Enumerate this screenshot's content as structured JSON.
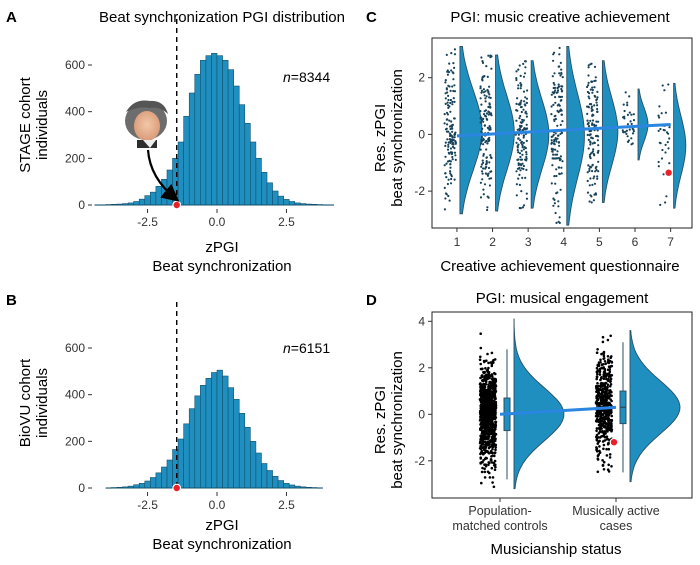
{
  "colors": {
    "bar_fill": "#1f8fc0",
    "bar_edge": "#13506e",
    "violin_fill": "#1f8fc0",
    "violin_edge": "#2c4f63",
    "points": "#17425a",
    "black_points": "#000000",
    "trend_line": "#2a86e0",
    "highlight": "#e8202a"
  },
  "labels": {
    "a_title": "Beat synchronization PGI distribution",
    "a_ylabel_1": "STAGE cohort",
    "a_ylabel_2": "individuals",
    "a_xlabel_1": "zPGI",
    "a_xlabel_2": "Beat synchronization",
    "a_n_italic": "n",
    "a_n_value": "=8344",
    "b_ylabel_1": "BioVU cohort",
    "b_ylabel_2": "individuals",
    "b_xlabel_1": "zPGI",
    "b_xlabel_2": "Beat synchronization",
    "b_n_italic": "n",
    "b_n_value": "=6151",
    "c_title": "PGI: music creative achievement",
    "c_ylabel_1": "Res. zPGI",
    "c_ylabel_2": "beat synchronization",
    "c_xlabel": "Creative achievement questionnaire",
    "d_title": "PGI: musical engagement",
    "d_ylabel_1": "Res. zPGI",
    "d_ylabel_2": "beat synchronization",
    "d_xlabel": "Musicianship status",
    "d_cat1_1": "Population-",
    "d_cat1_2": "matched controls",
    "d_cat2_1": "Musically active",
    "d_cat2_2": "cases"
  },
  "panels": [
    {
      "name": "panel-a",
      "letter": "A"
    },
    {
      "name": "panel-b",
      "letter": "B"
    },
    {
      "name": "panel-c",
      "letter": "C"
    },
    {
      "name": "panel-d",
      "letter": "D"
    }
  ],
  "chart_data": [
    {
      "type": "bar",
      "panel": "A",
      "title": "Beat synchronization PGI distribution",
      "xlabel": "zPGI Beat synchronization",
      "ylabel": "STAGE cohort individuals",
      "n": 8344,
      "xlim": [
        -4.5,
        4.5
      ],
      "ylim": [
        0,
        720
      ],
      "x_ticks": [
        -2.5,
        0.0,
        2.5
      ],
      "x_tick_labels": [
        "-2.5",
        "0.0",
        "2.5"
      ],
      "y_ticks": [
        0,
        200,
        400,
        600
      ],
      "y_tick_labels": [
        "0",
        "200",
        "400",
        "600"
      ],
      "bin_width": 0.2,
      "bin_starts": [
        -4.4,
        -4.2,
        -4.0,
        -3.8,
        -3.6,
        -3.4,
        -3.2,
        -3.0,
        -2.8,
        -2.6,
        -2.4,
        -2.2,
        -2.0,
        -1.8,
        -1.6,
        -1.4,
        -1.2,
        -1.0,
        -0.8,
        -0.6,
        -0.4,
        -0.2,
        0.0,
        0.2,
        0.4,
        0.6,
        0.8,
        1.0,
        1.2,
        1.4,
        1.6,
        1.8,
        2.0,
        2.2,
        2.4,
        2.6,
        2.8,
        3.0,
        3.2,
        3.4,
        3.6,
        3.8,
        4.0
      ],
      "counts": [
        1,
        1,
        2,
        3,
        4,
        6,
        9,
        15,
        25,
        40,
        55,
        80,
        110,
        150,
        200,
        270,
        380,
        480,
        560,
        620,
        640,
        650,
        640,
        620,
        580,
        510,
        430,
        350,
        270,
        200,
        140,
        95,
        60,
        38,
        24,
        15,
        9,
        6,
        4,
        3,
        2,
        1,
        1
      ],
      "cutoff_line_x": -1.45,
      "highlight_point": {
        "x": -1.45,
        "y": 0
      },
      "annotation": "portrait-with-arrow-to-highlighted-point"
    },
    {
      "type": "bar",
      "panel": "B",
      "xlabel": "zPGI Beat synchronization",
      "ylabel": "BioVU cohort individuals",
      "n": 6151,
      "xlim": [
        -4.5,
        4.5
      ],
      "ylim": [
        0,
        720
      ],
      "x_ticks": [
        -2.5,
        0.0,
        2.5
      ],
      "x_tick_labels": [
        "-2.5",
        "0.0",
        "2.5"
      ],
      "y_ticks": [
        0,
        200,
        400,
        600
      ],
      "y_tick_labels": [
        "0",
        "200",
        "400",
        "600"
      ],
      "bin_width": 0.2,
      "bin_starts": [
        -4.0,
        -3.8,
        -3.6,
        -3.4,
        -3.2,
        -3.0,
        -2.8,
        -2.6,
        -2.4,
        -2.2,
        -2.0,
        -1.8,
        -1.6,
        -1.4,
        -1.2,
        -1.0,
        -0.8,
        -0.6,
        -0.4,
        -0.2,
        0.0,
        0.2,
        0.4,
        0.6,
        0.8,
        1.0,
        1.2,
        1.4,
        1.6,
        1.8,
        2.0,
        2.2,
        2.4,
        2.6,
        2.8,
        3.0,
        3.2,
        3.4,
        3.6
      ],
      "counts": [
        1,
        2,
        3,
        5,
        8,
        14,
        20,
        30,
        45,
        65,
        90,
        120,
        165,
        210,
        275,
        340,
        395,
        440,
        470,
        495,
        505,
        480,
        430,
        380,
        320,
        260,
        200,
        150,
        105,
        75,
        50,
        32,
        20,
        13,
        8,
        5,
        3,
        2,
        1
      ],
      "cutoff_line_x": -1.45,
      "highlight_point": {
        "x": -1.45,
        "y": 0
      }
    },
    {
      "type": "scatter",
      "subtype": "raincloud",
      "panel": "C",
      "title": "PGI: music creative achievement",
      "xlabel": "Creative achievement questionnaire",
      "ylabel": "Res. zPGI beat synchronization",
      "categories": [
        "1",
        "2",
        "3",
        "4",
        "5",
        "6",
        "7"
      ],
      "ylim": [
        -3.3,
        3.4
      ],
      "y_ticks": [
        -2,
        0,
        2
      ],
      "y_tick_labels": [
        "-2",
        "0",
        "2"
      ],
      "groups": [
        {
          "category": "1",
          "min": -2.8,
          "max": 3.1,
          "density_width": 1.0
        },
        {
          "category": "2",
          "min": -2.7,
          "max": 2.8,
          "density_width": 0.85
        },
        {
          "category": "3",
          "min": -2.6,
          "max": 2.6,
          "density_width": 0.8
        },
        {
          "category": "4",
          "min": -3.2,
          "max": 3.1,
          "density_width": 0.8
        },
        {
          "category": "5",
          "min": -2.4,
          "max": 2.6,
          "density_width": 0.7
        },
        {
          "category": "6",
          "min": -0.9,
          "max": 1.6,
          "density_width": 0.45
        },
        {
          "category": "7",
          "min": -2.6,
          "max": 1.8,
          "density_width": 0.55
        }
      ],
      "trend_line": {
        "x": [
          1,
          7
        ],
        "y": [
          -0.05,
          0.35
        ]
      },
      "highlight_point": {
        "category": "7",
        "y": -1.35
      }
    },
    {
      "type": "scatter",
      "subtype": "raincloud",
      "panel": "D",
      "title": "PGI: musical engagement",
      "xlabel": "Musicianship status",
      "ylabel": "Res. zPGI beat synchronization",
      "categories": [
        "Population-matched controls",
        "Musically active cases"
      ],
      "ylim": [
        -3.6,
        4.4
      ],
      "y_ticks": [
        -2,
        0,
        2,
        4
      ],
      "y_tick_labels": [
        "-2",
        "0",
        "2",
        "4"
      ],
      "groups": [
        {
          "category": "Population-matched controls",
          "min": -3.2,
          "max": 4.1,
          "median": 0.0,
          "q1": -0.7,
          "q3": 0.7
        },
        {
          "category": "Musically active cases",
          "min": -2.9,
          "max": 3.6,
          "median": 0.3,
          "q1": -0.4,
          "q3": 1.0
        }
      ],
      "trend_line": {
        "x": [
          1,
          2
        ],
        "y": [
          0.0,
          0.3
        ]
      },
      "highlight_point": {
        "category": "Musically active cases",
        "y": -1.2
      }
    }
  ]
}
